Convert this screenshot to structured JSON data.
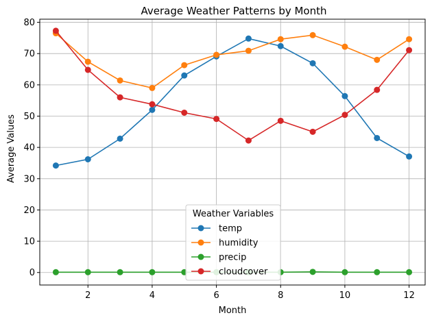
{
  "chart_data": {
    "type": "line",
    "title": "Average Weather Patterns by Month",
    "xlabel": "Month",
    "ylabel": "Average Values",
    "xlim": [
      0.5,
      12.5
    ],
    "ylim": [
      -4,
      81
    ],
    "xticks": [
      2,
      4,
      6,
      8,
      10,
      12
    ],
    "yticks": [
      0,
      10,
      20,
      30,
      40,
      50,
      60,
      70,
      80
    ],
    "grid": true,
    "legend": {
      "title": "Weather Variables",
      "placement": "lower-center"
    },
    "x": [
      1,
      2,
      3,
      4,
      5,
      6,
      7,
      8,
      9,
      10,
      11,
      12
    ],
    "series": [
      {
        "name": "temp",
        "color": "#1f77b4",
        "values": [
          34.2,
          36.2,
          42.8,
          52.0,
          63.0,
          69.1,
          74.8,
          72.4,
          66.9,
          56.4,
          43.0,
          37.1
        ]
      },
      {
        "name": "humidity",
        "color": "#ff7f0e",
        "values": [
          76.5,
          67.4,
          61.4,
          59.0,
          66.3,
          69.6,
          70.9,
          74.6,
          75.9,
          72.2,
          68.0,
          74.6
        ]
      },
      {
        "name": "precip",
        "color": "#2ca02c",
        "values": [
          0.1,
          0.1,
          0.1,
          0.1,
          0.1,
          0.1,
          0.1,
          0.1,
          0.2,
          0.1,
          0.1,
          0.1
        ]
      },
      {
        "name": "cloudcover",
        "color": "#d62728",
        "values": [
          77.3,
          64.8,
          56.0,
          53.8,
          51.1,
          49.1,
          42.2,
          48.5,
          45.0,
          50.4,
          58.4,
          71.1
        ]
      }
    ]
  }
}
